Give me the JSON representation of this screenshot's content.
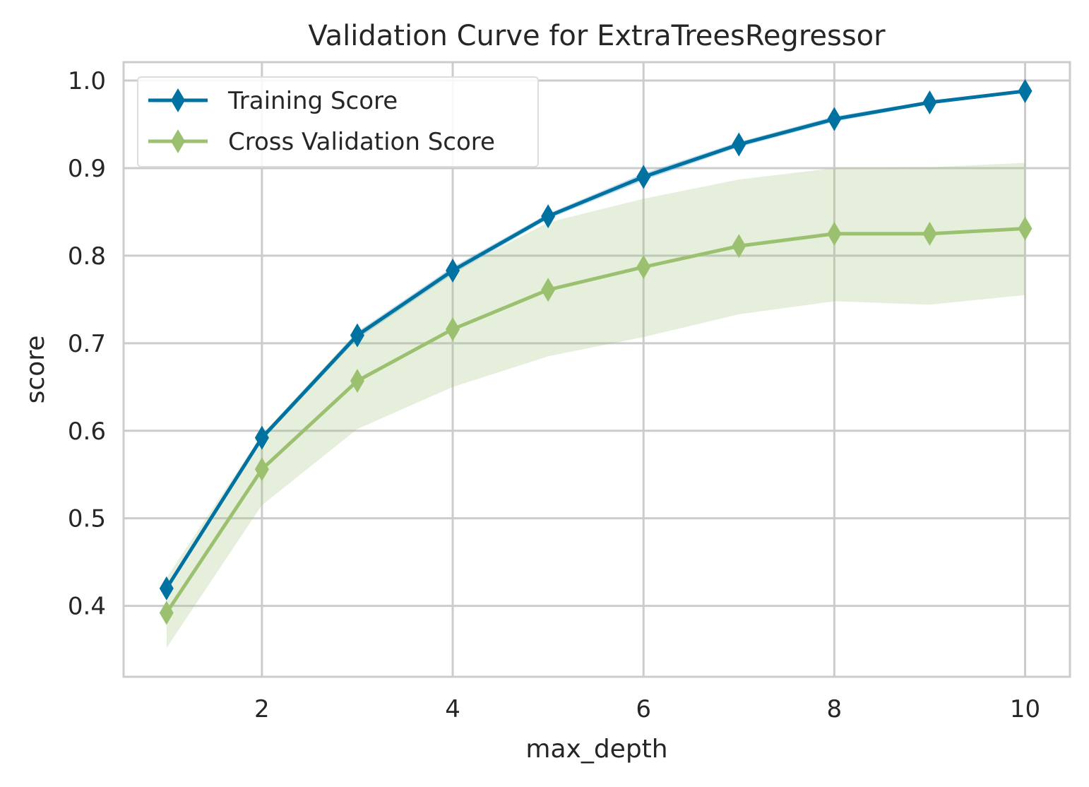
{
  "chart_data": {
    "type": "line",
    "title": "Validation Curve for ExtraTreesRegressor",
    "xlabel": "max_depth",
    "ylabel": "score",
    "xlim": [
      0.55,
      10.47
    ],
    "ylim": [
      0.319,
      1.021
    ],
    "xticks": [
      2,
      4,
      6,
      8,
      10
    ],
    "yticks": [
      0.4,
      0.5,
      0.6,
      0.7,
      0.8,
      0.9,
      1.0
    ],
    "ytick_labels": [
      "0.4",
      "0.5",
      "0.6",
      "0.7",
      "0.8",
      "0.9",
      "1.0"
    ],
    "grid": true,
    "legend_position": "top-left",
    "x": [
      1,
      2,
      3,
      4,
      5,
      6,
      7,
      8,
      9,
      10
    ],
    "series": [
      {
        "name": "Training Score",
        "color": "#0072a2",
        "band_color": "#0072a2",
        "values": [
          0.42,
          0.592,
          0.709,
          0.783,
          0.845,
          0.89,
          0.927,
          0.956,
          0.975,
          0.988
        ],
        "lower": [
          0.417,
          0.589,
          0.705,
          0.779,
          0.842,
          0.886,
          0.924,
          0.953,
          0.973,
          0.987
        ],
        "upper": [
          0.423,
          0.595,
          0.713,
          0.787,
          0.848,
          0.894,
          0.93,
          0.959,
          0.977,
          0.989
        ]
      },
      {
        "name": "Cross Validation Score",
        "color": "#9bc170",
        "band_color": "#9bc170",
        "values": [
          0.392,
          0.556,
          0.657,
          0.716,
          0.761,
          0.787,
          0.811,
          0.825,
          0.825,
          0.831
        ],
        "lower": [
          0.352,
          0.515,
          0.602,
          0.65,
          0.685,
          0.707,
          0.733,
          0.748,
          0.744,
          0.755
        ],
        "upper": [
          0.432,
          0.596,
          0.713,
          0.781,
          0.838,
          0.865,
          0.887,
          0.9,
          0.901,
          0.906
        ]
      }
    ]
  }
}
